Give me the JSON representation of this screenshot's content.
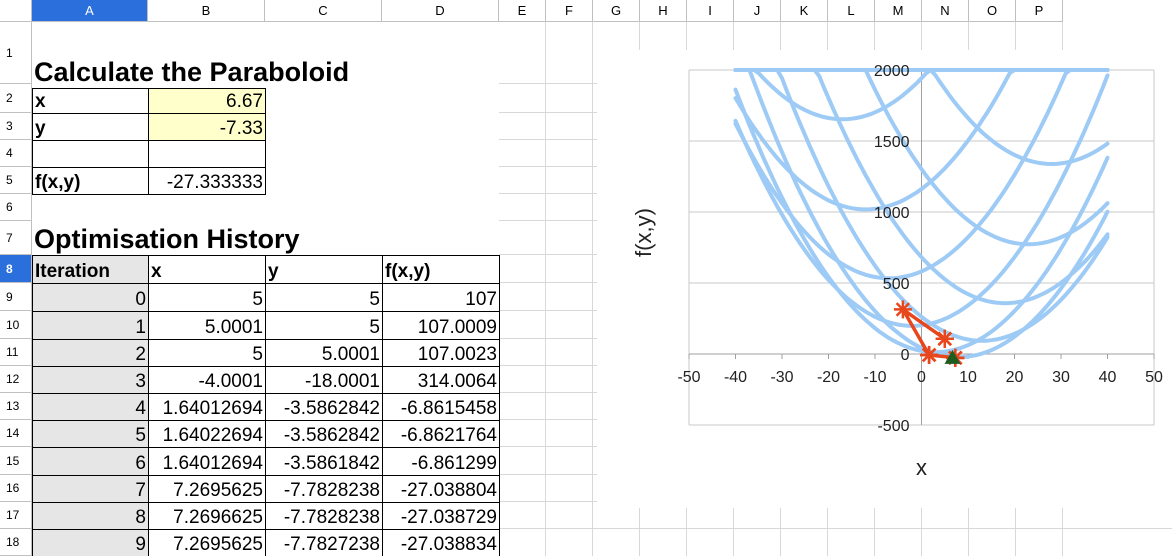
{
  "columns": [
    "A",
    "B",
    "C",
    "D",
    "E",
    "F",
    "G",
    "H",
    "I",
    "J",
    "K",
    "L",
    "M",
    "N",
    "O",
    "P"
  ],
  "selected_column": "A",
  "rows": [
    "1",
    "2",
    "3",
    "4",
    "5",
    "6",
    "7",
    "8",
    "9",
    "10",
    "11",
    "12",
    "13",
    "14",
    "15",
    "16",
    "17",
    "18"
  ],
  "selected_row": "8",
  "inputs": {
    "title": "Calculate the Paraboloid",
    "x_label": "x",
    "x_value": "6.67",
    "y_label": "y",
    "y_value": "-7.33",
    "f_label": "f(x,y)",
    "f_value": "-27.333333"
  },
  "history": {
    "title": "Optimisation History",
    "headers": [
      "Iteration",
      "x",
      "y",
      "f(x,y)"
    ],
    "rows": [
      [
        "0",
        "5",
        "5",
        "107"
      ],
      [
        "1",
        "5.0001",
        "5",
        "107.0009"
      ],
      [
        "2",
        "5",
        "5.0001",
        "107.0023"
      ],
      [
        "3",
        "-4.0001",
        "-18.0001",
        "314.0064"
      ],
      [
        "4",
        "1.64012694",
        "-3.5862842",
        "-6.8615458"
      ],
      [
        "5",
        "1.64022694",
        "-3.5862842",
        "-6.8621764"
      ],
      [
        "6",
        "1.64012694",
        "-3.5861842",
        "-6.861299"
      ],
      [
        "7",
        "7.2695625",
        "-7.7828238",
        "-27.038804"
      ],
      [
        "8",
        "7.2696625",
        "-7.7828238",
        "-27.038729"
      ],
      [
        "9",
        "7.2695625",
        "-7.7827238",
        "-27.038834"
      ]
    ]
  },
  "chart_data": {
    "type": "line",
    "title": "",
    "xlabel": "x",
    "ylabel": "f(x,y)",
    "xlim": [
      -50,
      50
    ],
    "ylim": [
      -500,
      2000
    ],
    "xticks": [
      -50,
      -40,
      -30,
      -20,
      -10,
      0,
      10,
      20,
      30,
      40,
      50
    ],
    "yticks": [
      -500,
      0,
      500,
      1000,
      1500,
      2000
    ],
    "grid": "horizontal",
    "legend": "none",
    "colors": {
      "surface": "#9ecbf5",
      "path": "#e8461c",
      "final": "#1f5c1f"
    },
    "surface_curve_y_values": [
      -50,
      -40,
      -30,
      -20,
      -10,
      0,
      10,
      20,
      30,
      40,
      50
    ],
    "surface_curve_x_range": [
      -40,
      40
    ],
    "series": [
      {
        "x": [
          5,
          5.0001,
          5,
          -4.0001,
          1.64012694,
          1.64022694,
          1.64012694,
          7.2695625,
          7.2696625,
          7.2695625
        ],
        "y": [
          107,
          107.0009,
          107.0023,
          314.0064,
          -6.8615458,
          -6.8621764,
          -6.861299,
          -27.038804,
          -27.038729,
          -27.038834
        ]
      }
    ],
    "final_point": {
      "x": 6.67,
      "y": -27.333333
    }
  }
}
